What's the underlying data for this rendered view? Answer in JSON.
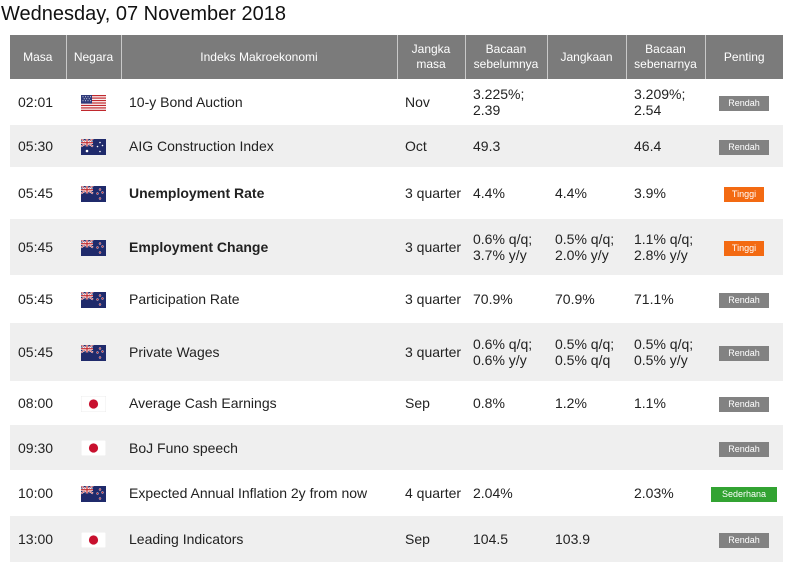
{
  "page_title": "Wednesday, 07 November 2018",
  "columns": [
    "Masa",
    "Negara",
    "Indeks Makroekonomi",
    "Jangka masa",
    "Bacaan sebelumnya",
    "Jangkaan",
    "Bacaan sebenarnya",
    "Penting"
  ],
  "rows": [
    {
      "time": "02:01",
      "country": "us-flag-icon",
      "event": "10-y Bond Auction",
      "event_bold": false,
      "period": "Nov",
      "previous": "3.225%; 2.39",
      "forecast": "",
      "actual": "3.209%; 2.54",
      "actual_color": "normal",
      "importance": "Rendah",
      "importance_level": "low"
    },
    {
      "time": "05:30",
      "country": "australia-flag-icon",
      "event": "AIG Construction Index",
      "event_bold": false,
      "period": "Oct",
      "previous": "49.3",
      "forecast": "",
      "actual": "46.4",
      "actual_color": "normal",
      "importance": "Rendah",
      "importance_level": "low"
    },
    {
      "time": "05:45",
      "country": "new-zealand-flag-icon",
      "event": "Unemployment Rate",
      "event_bold": true,
      "period": "3 quarter",
      "previous": "4.4%",
      "forecast": "4.4%",
      "actual": "3.9%",
      "actual_color": "red",
      "importance": "Tinggi",
      "importance_level": "high"
    },
    {
      "time": "05:45",
      "country": "new-zealand-flag-icon",
      "event": "Employment Change",
      "event_bold": true,
      "period": "3 quarter",
      "previous": "0.6% q/q; 3.7% y/y",
      "forecast": "0.5% q/q; 2.0% y/y",
      "actual": "1.1% q/q; 2.8% y/y",
      "actual_color": "green",
      "importance": "Tinggi",
      "importance_level": "high"
    },
    {
      "time": "05:45",
      "country": "new-zealand-flag-icon",
      "event": "Participation Rate",
      "event_bold": false,
      "period": "3 quarter",
      "previous": "70.9%",
      "forecast": "70.9%",
      "actual": "71.1%",
      "actual_color": "green",
      "importance": "Rendah",
      "importance_level": "low"
    },
    {
      "time": "05:45",
      "country": "new-zealand-flag-icon",
      "event": "Private Wages",
      "event_bold": false,
      "period": "3 quarter",
      "previous": "0.6% q/q; 0.6% y/y",
      "forecast": "0.5% q/q; 0.5% q/q",
      "actual": "0.5% q/q; 0.5% y/y",
      "actual_color": "normal",
      "importance": "Rendah",
      "importance_level": "low"
    },
    {
      "time": "08:00",
      "country": "japan-flag-icon",
      "event": "Average Cash Earnings",
      "event_bold": false,
      "period": "Sep",
      "previous": "0.8%",
      "forecast": "1.2%",
      "actual": "1.1%",
      "actual_color": "red",
      "importance": "Rendah",
      "importance_level": "low"
    },
    {
      "time": "09:30",
      "country": "japan-flag-icon",
      "event": "BoJ Funo speech",
      "event_bold": false,
      "period": "",
      "previous": "",
      "forecast": "",
      "actual": "",
      "actual_color": "normal",
      "importance": "Rendah",
      "importance_level": "low"
    },
    {
      "time": "10:00",
      "country": "new-zealand-flag-icon",
      "event": "Expected Annual Inflation 2y from now",
      "event_bold": false,
      "period": "4 quarter",
      "previous": "2.04%",
      "forecast": "",
      "actual": "2.03%",
      "actual_color": "normal",
      "importance": "Sederhana",
      "importance_level": "mid"
    },
    {
      "time": "13:00",
      "country": "japan-flag-icon",
      "event": "Leading Indicators",
      "event_bold": false,
      "period": "Sep",
      "previous": "104.5",
      "forecast": "103.9",
      "actual": "",
      "actual_color": "normal",
      "importance": "Rendah",
      "importance_level": "low"
    }
  ],
  "colors": {
    "header_bg": "#7b7b7b",
    "row_alt_bg": "#efefef",
    "red": "#e0201b",
    "green": "#2c8a1c",
    "badge_low": "#828282",
    "badge_high": "#f36a12",
    "badge_mid": "#32a332"
  }
}
